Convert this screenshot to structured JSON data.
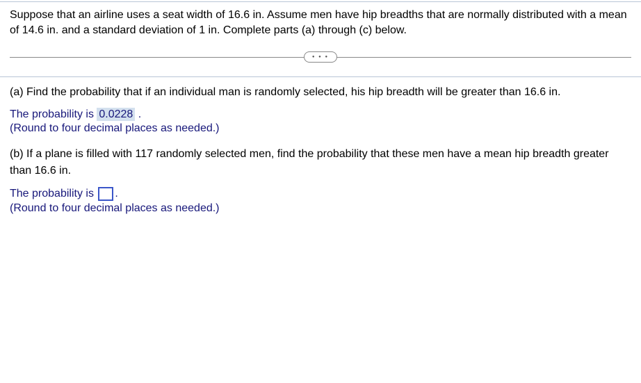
{
  "intro": "Suppose that an airline uses a seat width of 16.6 in. Assume men have hip breadths that are normally distributed with a mean of 14.6 in. and a standard deviation of 1 in. Complete parts (a) through (c) below.",
  "pill_dots": "● ● ●",
  "part_a": {
    "question": "(a) Find the probability that if an individual man is randomly selected, his hip breadth will be greater than 16.6 in.",
    "answer_prefix": "The probability is ",
    "answer_value": "0.0228",
    "answer_suffix": " .",
    "hint": "(Round to four decimal places as needed.)"
  },
  "part_b": {
    "question": "(b) If a plane is filled with 117 randomly selected men, find the probability that these men have a mean hip breadth greater than 16.6 in.",
    "answer_prefix": "The probability is ",
    "answer_suffix": ".",
    "hint": "(Round to four decimal places as needed.)"
  },
  "colors": {
    "text_main": "#000000",
    "text_math": "#17177a",
    "highlight_bg": "#d3e0ee",
    "input_border": "#3a56c9",
    "frame_border": "#b8c5d6",
    "divider": "#888888"
  }
}
